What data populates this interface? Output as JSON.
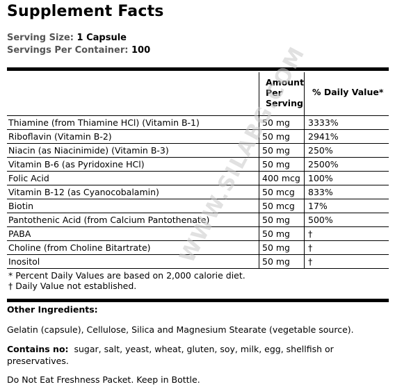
{
  "title": "Supplement Facts",
  "serving_size_label": "Serving Size:",
  "serving_size_value": "1 Capsule",
  "servings_label": "Servings Per Container:",
  "servings_value": "100",
  "table": {
    "header_amount": "Amount Per Serving",
    "header_dv": "% Daily Value*",
    "rows": [
      {
        "name": "Thiamine (from Thiamine HCl) (Vitamin B-1)",
        "amount": "50 mg",
        "dv": "3333%"
      },
      {
        "name": "Riboflavin (Vitamin B-2)",
        "amount": "50 mg",
        "dv": "2941%"
      },
      {
        "name": "Niacin (as Niacinimide) (Vitamin B-3)",
        "amount": "50 mg",
        "dv": "250%"
      },
      {
        "name": "Vitamin B-6 (as Pyridoxine HCl)",
        "amount": "50 mg",
        "dv": "2500%"
      },
      {
        "name": "Folic Acid",
        "amount": "400 mcg",
        "dv": "100%"
      },
      {
        "name": "Vitamin B-12 (as Cyanocobalamin)",
        "amount": "50 mcg",
        "dv": "833%"
      },
      {
        "name": "Biotin",
        "amount": "50 mcg",
        "dv": "17%"
      },
      {
        "name": "Pantothenic Acid (from Calcium Pantothenate)",
        "amount": "50 mg",
        "dv": "500%"
      },
      {
        "name": "PABA",
        "amount": "50 mg",
        "dv": "†"
      },
      {
        "name": "Choline (from Choline Bitartrate)",
        "amount": "50 mg",
        "dv": "†"
      },
      {
        "name": "Inositol",
        "amount": "50 mg",
        "dv": "†"
      }
    ]
  },
  "footnote1": "* Percent Daily Values are based on 2,000 calorie diet.",
  "footnote2": "† Daily Value not established.",
  "other_ingredients_label": "Other Ingredients:",
  "other_ingredients_text": "Gelatin (capsule), Cellulose, Silica and Magnesium Stearate (vegetable source).",
  "contains_no_label": "Contains no:",
  "contains_no_text": "sugar, salt, yeast, wheat, gluten, soy, milk, egg, shellfish or preservatives.",
  "warning_text": "Do Not Eat Freshness Packet.  Keep in Bottle.",
  "watermark_text": "WWW.SILABG.COM"
}
